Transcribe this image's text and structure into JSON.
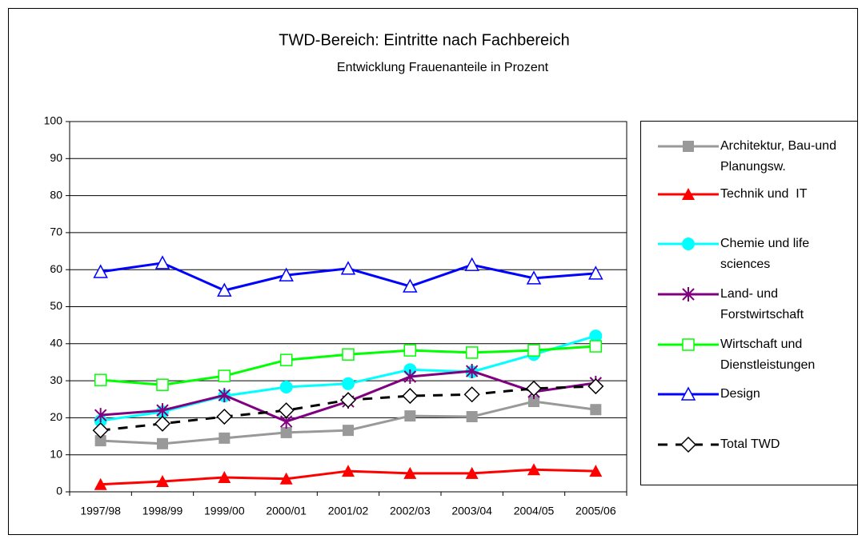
{
  "chart_data": {
    "type": "line",
    "title": "TWD-Bereich: Eintritte nach Fachbereich",
    "subtitle": "Entwicklung Frauenanteile in Prozent",
    "categories": [
      "1997/98",
      "1998/99",
      "1999/00",
      "2000/01",
      "2001/02",
      "2002/03",
      "2003/04",
      "2004/05",
      "2005/06"
    ],
    "ylim": [
      0,
      100
    ],
    "yticks": [
      0,
      10,
      20,
      30,
      40,
      50,
      60,
      70,
      80,
      90,
      100
    ],
    "grid": true,
    "legend": "right",
    "series": [
      {
        "name": "Architektur, Bau-und Planungsw.",
        "color": "#999999",
        "marker": "square-filled",
        "values": [
          13.8,
          13.0,
          14.5,
          16.0,
          16.6,
          20.5,
          20.3,
          24.4,
          22.2
        ]
      },
      {
        "name": "Technik und  IT",
        "color": "#ff0000",
        "marker": "triangle-filled",
        "values": [
          2.0,
          2.8,
          3.9,
          3.5,
          5.6,
          5.0,
          5.0,
          6.0,
          5.6
        ]
      },
      {
        "name": "Chemie und life sciences",
        "color": "#00ffff",
        "marker": "circle-filled",
        "values": [
          19.2,
          21.6,
          25.9,
          28.3,
          29.2,
          33.0,
          32.4,
          37.1,
          42.1
        ]
      },
      {
        "name": "Land- und Forstwirtschaft",
        "color": "#800080",
        "marker": "star",
        "values": [
          20.7,
          22.0,
          26.1,
          19.0,
          24.4,
          31.1,
          32.6,
          27.0,
          29.4
        ]
      },
      {
        "name": "Wirtschaft und Dienstleistungen",
        "color": "#00ff00",
        "marker": "square-open",
        "values": [
          30.2,
          28.9,
          31.3,
          35.6,
          37.1,
          38.2,
          37.6,
          38.2,
          39.3
        ]
      },
      {
        "name": "Design",
        "color": "#0000ff",
        "marker": "triangle-open",
        "values": [
          59.4,
          61.8,
          54.4,
          58.5,
          60.3,
          55.5,
          61.3,
          57.7,
          59.0
        ]
      },
      {
        "name": "Total TWD",
        "color": "#000000",
        "marker": "diamond-open",
        "dashed": true,
        "values": [
          16.6,
          18.4,
          20.3,
          22.0,
          24.8,
          25.9,
          26.3,
          27.9,
          28.5
        ]
      }
    ]
  }
}
